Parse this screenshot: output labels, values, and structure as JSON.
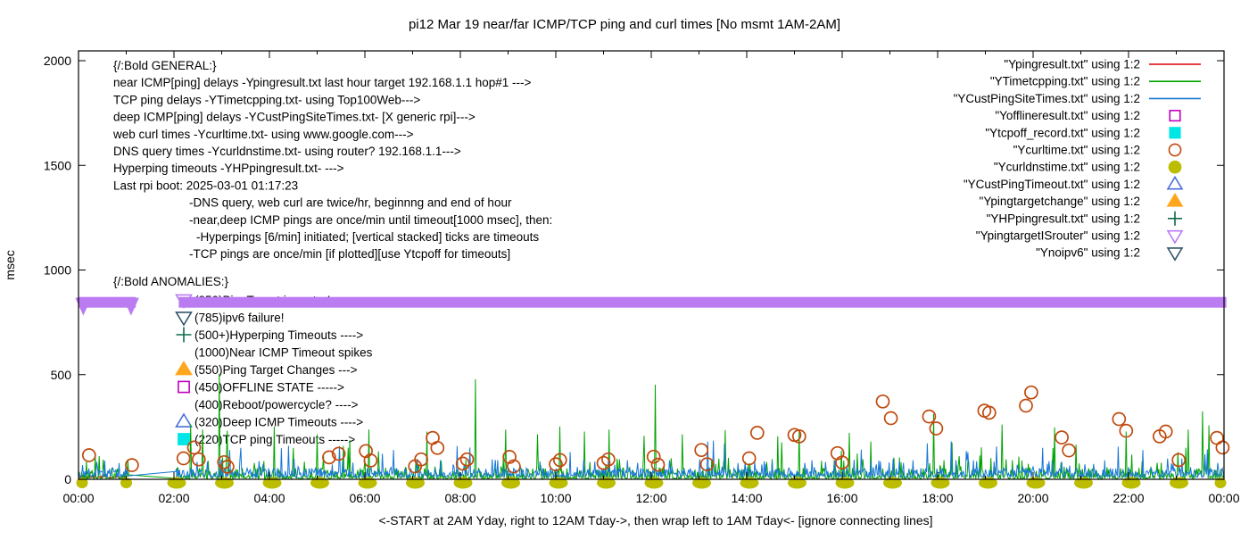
{
  "title": "pi12 Mar 19  near/far ICMP/TCP ping and curl times [No msmt 1AM-2AM]",
  "axes": {
    "ylabel": "msec",
    "xlabel": "<-START at 2AM Yday, right to 12AM Tday->, then wrap left to 1AM Tday<- [ignore connecting lines]",
    "y_ticks": [
      0,
      500,
      1000,
      1500,
      2000
    ],
    "x_major_tick_labels": [
      "00:00",
      "02:00",
      "04:00",
      "06:00",
      "08:00",
      "10:00",
      "12:00",
      "14:00",
      "16:00",
      "18:00",
      "20:00",
      "22:00",
      "00:00"
    ]
  },
  "general_block": {
    "lines": [
      {
        "text": "{/:Bold GENERAL:}",
        "indent": 0
      },
      {
        "text": "near ICMP[ping] delays -Ypingresult.txt last hour target 192.168.1.1 hop#1 --->",
        "indent": 0
      },
      {
        "text": "TCP ping delays -YTimetcpping.txt- using Top100Web--->",
        "indent": 0
      },
      {
        "text": "deep ICMP[ping] delays -YCustPingSiteTimes.txt- [X generic rpi]--->",
        "indent": 0
      },
      {
        "text": "web curl times -Ycurltime.txt- using www.google.com--->",
        "indent": 0
      },
      {
        "text": "DNS query times -Ycurldnstime.txt- using router? 192.168.1.1--->",
        "indent": 0
      },
      {
        "text": "Hyperping timeouts -YHPpingresult.txt- --->",
        "indent": 0
      },
      {
        "text": "Last rpi boot: 2025-03-01 01:17:23",
        "indent": 0
      },
      {
        "text": "-DNS query, web curl are twice/hr, beginnng and end of hour",
        "indent": 1
      },
      {
        "text": "-near,deep ICMP pings are once/min until timeout[1000 msec], then:",
        "indent": 1
      },
      {
        "text": "-Hyperpings [6/min] initiated; [vertical stacked] ticks are timeouts",
        "indent": 2
      },
      {
        "text": "-TCP pings are once/min [if plotted][use Ytcpoff for timeouts]",
        "indent": 1
      }
    ]
  },
  "anomalies_block": {
    "header": "{/:Bold ANOMALIES:}",
    "lines": [
      {
        "marker": {
          "shape": "tri-down",
          "fill": false,
          "color": "#bb7cf2"
        },
        "text": "(850)PingTarget is router!"
      },
      {
        "marker": {
          "shape": "tri-down",
          "fill": false,
          "color": "#33566b"
        },
        "text": "(785)ipv6 failure!"
      },
      {
        "marker": {
          "shape": "plus",
          "fill": false,
          "color": "#0e6b4c"
        },
        "text": "(500+)Hyperping Timeouts ---->"
      },
      {
        "marker": null,
        "text": "(1000)Near ICMP Timeout spikes"
      },
      {
        "marker": {
          "shape": "tri-up",
          "fill": true,
          "color": "#ffa61f"
        },
        "text": "(550)Ping Target Changes --->"
      },
      {
        "marker": {
          "shape": "square",
          "fill": false,
          "color": "#bf00bf"
        },
        "text": "(450)OFFLINE STATE ----->"
      },
      {
        "marker": null,
        "text": "(400)Reboot/powercycle? ---->"
      },
      {
        "marker": {
          "shape": "tri-up",
          "fill": false,
          "color": "#4a6fdc"
        },
        "text": "(320)Deep ICMP Timeouts ---->"
      },
      {
        "marker": {
          "shape": "square",
          "fill": true,
          "color": "#00e5e5"
        },
        "text": "(220)TCP ping Timeouts ----->"
      }
    ]
  },
  "legend": [
    {
      "label": "\"Ypingresult.txt\" using 1:2",
      "swatch": {
        "type": "line",
        "color": "#dd0000"
      }
    },
    {
      "label": "\"YTimetcpping.txt\" using 1:2",
      "swatch": {
        "type": "line",
        "color": "#00a400"
      }
    },
    {
      "label": "\"YCustPingSiteTimes.txt\" using 1:2",
      "swatch": {
        "type": "line",
        "color": "#1777d6"
      }
    },
    {
      "label": "\"Yofflineresult.txt\" using 1:2",
      "swatch": {
        "type": "marker",
        "shape": "square",
        "fill": false,
        "color": "#bf00bf"
      }
    },
    {
      "label": "\"Ytcpoff_record.txt\" using 1:2",
      "swatch": {
        "type": "marker",
        "shape": "square",
        "fill": true,
        "color": "#00e5e5"
      }
    },
    {
      "label": "\"Ycurltime.txt\" using 1:2",
      "swatch": {
        "type": "marker",
        "shape": "circle",
        "fill": false,
        "color": "#c04a0e"
      }
    },
    {
      "label": "\"Ycurldnstime.txt\" using 1:2",
      "swatch": {
        "type": "marker",
        "shape": "circle",
        "fill": true,
        "color": "#bcbc00"
      }
    },
    {
      "label": "\"YCustPingTimeout.txt\" using 1:2",
      "swatch": {
        "type": "marker",
        "shape": "tri-up",
        "fill": false,
        "color": "#4a6fdc"
      }
    },
    {
      "label": "\"Ypingtargetchange\" using 1:2",
      "swatch": {
        "type": "marker",
        "shape": "tri-up",
        "fill": true,
        "color": "#ffa61f"
      }
    },
    {
      "label": "\"YHPpingresult.txt\" using 1:2",
      "swatch": {
        "type": "marker",
        "shape": "plus",
        "fill": false,
        "color": "#0e6b4c"
      }
    },
    {
      "label": "\"YpingtargetISrouter\" using 1:2",
      "swatch": {
        "type": "marker",
        "shape": "tri-down",
        "fill": false,
        "color": "#bb7cf2"
      }
    },
    {
      "label": "\"Ynoipv6\" using 1:2",
      "swatch": {
        "type": "marker",
        "shape": "tri-down",
        "fill": false,
        "color": "#33566b"
      }
    }
  ],
  "chart_data": {
    "type": "line",
    "title": "pi12 Mar 19  near/far ICMP/TCP ping and curl times [No msmt 1AM-2AM]",
    "ylabel": "msec",
    "xlabel": "<-START at 2AM Yday, right to 12AM Tday->, then wrap left to 1AM Tday<- [ignore connecting lines]",
    "ylim": [
      0,
      2050
    ],
    "xlim_hours": [
      0,
      24
    ],
    "y_ticks": [
      0,
      500,
      1000,
      1500,
      2000
    ],
    "x_major_ticks_hours": [
      0,
      2,
      4,
      6,
      8,
      10,
      12,
      14,
      16,
      18,
      20,
      22,
      24
    ],
    "x_minor_every_hours": 1,
    "grid": false,
    "legend_position": "top-right, inside",
    "no_measurement_gap_hours": [
      1.05,
      2.03
    ],
    "series": [
      {
        "name": "\"Ypingresult.txt\" using 1:2",
        "color": "#dd0000",
        "style": "line",
        "desc": "near ICMP ping delays, last hour only",
        "range_hours": [
          0,
          1
        ],
        "baseline_msec": [
          6,
          16
        ]
      },
      {
        "name": "\"YTimetcpping.txt\" using 1:2",
        "color": "#00a400",
        "style": "noisy-line",
        "desc": "TCP ping delays, once/min, full day with 1AM-2AM gap",
        "baseline_msec": [
          4,
          60
        ],
        "spikes": [
          [
            0.35,
            120
          ],
          [
            2.35,
            262
          ],
          [
            2.6,
            238
          ],
          [
            2.95,
            505
          ],
          [
            3.12,
            232
          ],
          [
            4.1,
            252
          ],
          [
            4.5,
            150
          ],
          [
            5.0,
            215
          ],
          [
            5.55,
            160
          ],
          [
            6.08,
            238
          ],
          [
            7.3,
            228
          ],
          [
            8.32,
            478
          ],
          [
            8.95,
            238
          ],
          [
            9.62,
            215
          ],
          [
            10.08,
            252
          ],
          [
            10.6,
            228
          ],
          [
            11.12,
            238
          ],
          [
            11.85,
            208
          ],
          [
            12.08,
            452
          ],
          [
            12.65,
            215
          ],
          [
            13.55,
            235
          ],
          [
            14.65,
            205
          ],
          [
            15.1,
            232
          ],
          [
            16.15,
            222
          ],
          [
            17.92,
            312
          ],
          [
            19.35,
            262
          ],
          [
            20.45,
            248
          ],
          [
            21.95,
            228
          ],
          [
            23.25,
            238
          ],
          [
            23.55,
            325
          ],
          [
            23.68,
            258
          ]
        ]
      },
      {
        "name": "\"YCustPingSiteTimes.txt\" using 1:2",
        "color": "#1777d6",
        "style": "noisy-line",
        "desc": "deep ICMP ping delays, once/min, full day with 1AM-2AM gap",
        "baseline_msec": [
          10,
          55
        ],
        "spikes": [
          [
            3.4,
            150
          ],
          [
            4.4,
            160
          ],
          [
            6.6,
            140
          ],
          [
            8.2,
            152
          ],
          [
            10.3,
            130
          ],
          [
            13.3,
            185
          ],
          [
            16.4,
            142
          ],
          [
            18.6,
            135
          ],
          [
            20.2,
            150
          ],
          [
            22.3,
            140
          ]
        ]
      },
      {
        "name": "\"Yofflineresult.txt\" using 1:2",
        "color": "#bf00bf",
        "style": "points",
        "marker": {
          "shape": "square",
          "fill": false
        },
        "points": []
      },
      {
        "name": "\"Ytcpoff_record.txt\" using 1:2",
        "color": "#00e5e5",
        "style": "points",
        "marker": {
          "shape": "square",
          "fill": true
        },
        "points": []
      },
      {
        "name": "\"Ycurltime.txt\" using 1:2",
        "color": "#c04a0e",
        "style": "points",
        "marker": {
          "shape": "circle",
          "fill": false
        },
        "points": [
          [
            0.22,
            115
          ],
          [
            1.12,
            68
          ],
          [
            2.2,
            100
          ],
          [
            2.42,
            152
          ],
          [
            2.52,
            95
          ],
          [
            3.05,
            82
          ],
          [
            3.12,
            60
          ],
          [
            5.25,
            105
          ],
          [
            5.45,
            122
          ],
          [
            6.02,
            135
          ],
          [
            6.12,
            90
          ],
          [
            7.05,
            62
          ],
          [
            7.18,
            95
          ],
          [
            7.42,
            198
          ],
          [
            7.52,
            150
          ],
          [
            8.05,
            75
          ],
          [
            8.14,
            95
          ],
          [
            9.03,
            107
          ],
          [
            9.12,
            62
          ],
          [
            10.0,
            72
          ],
          [
            10.09,
            92
          ],
          [
            11.0,
            78
          ],
          [
            11.1,
            95
          ],
          [
            12.05,
            108
          ],
          [
            12.14,
            70
          ],
          [
            13.05,
            140
          ],
          [
            13.17,
            72
          ],
          [
            14.05,
            100
          ],
          [
            14.22,
            222
          ],
          [
            15.0,
            212
          ],
          [
            15.1,
            205
          ],
          [
            15.9,
            125
          ],
          [
            16.0,
            80
          ],
          [
            16.85,
            372
          ],
          [
            17.02,
            292
          ],
          [
            17.82,
            300
          ],
          [
            17.97,
            243
          ],
          [
            18.98,
            328
          ],
          [
            19.08,
            318
          ],
          [
            19.85,
            352
          ],
          [
            19.96,
            415
          ],
          [
            20.6,
            200
          ],
          [
            20.75,
            138
          ],
          [
            21.8,
            288
          ],
          [
            21.95,
            232
          ],
          [
            22.65,
            205
          ],
          [
            22.78,
            228
          ],
          [
            23.05,
            92
          ],
          [
            23.85,
            198
          ],
          [
            23.97,
            152
          ]
        ]
      },
      {
        "name": "\"Ycurldnstime.txt\" using 1:2",
        "color": "#bcbc00",
        "style": "points",
        "marker": {
          "shape": "circle",
          "fill": true
        },
        "desc": "DNS query times ~0 msec, twice/hr at each hour mark",
        "value_msec": 0,
        "hours_single": [
          0,
          1,
          24
        ],
        "hours_wide": [
          2,
          3,
          4,
          5,
          6,
          7,
          8,
          9,
          10,
          11,
          12,
          13,
          14,
          15,
          16,
          17,
          18,
          19,
          20,
          21,
          22,
          23
        ]
      },
      {
        "name": "\"YCustPingTimeout.txt\" using 1:2",
        "color": "#4a6fdc",
        "style": "points",
        "marker": {
          "shape": "tri-up",
          "fill": false
        },
        "points": []
      },
      {
        "name": "\"Ypingtargetchange\" using 1:2",
        "color": "#ffa61f",
        "style": "points",
        "marker": {
          "shape": "tri-up",
          "fill": true
        },
        "points": []
      },
      {
        "name": "\"YHPpingresult.txt\" using 1:2",
        "color": "#0e6b4c",
        "style": "points",
        "marker": {
          "shape": "plus",
          "fill": false
        },
        "points": []
      },
      {
        "name": "\"YpingtargetISrouter\" using 1:2",
        "color": "#bb7cf2",
        "style": "points",
        "marker": {
          "shape": "tri-down",
          "fill": false
        },
        "desc": "dense band of down-triangles at 850 msec across whole day except gap",
        "band_value_msec": 850,
        "band_segments_hours": [
          [
            0,
            1.2
          ],
          [
            2.1,
            24.05
          ]
        ],
        "tip_hours": [
          0.1,
          1.1
        ]
      },
      {
        "name": "\"Ynoipv6\" using 1:2",
        "color": "#33566b",
        "style": "points",
        "marker": {
          "shape": "tri-down",
          "fill": false
        },
        "points": []
      }
    ]
  }
}
